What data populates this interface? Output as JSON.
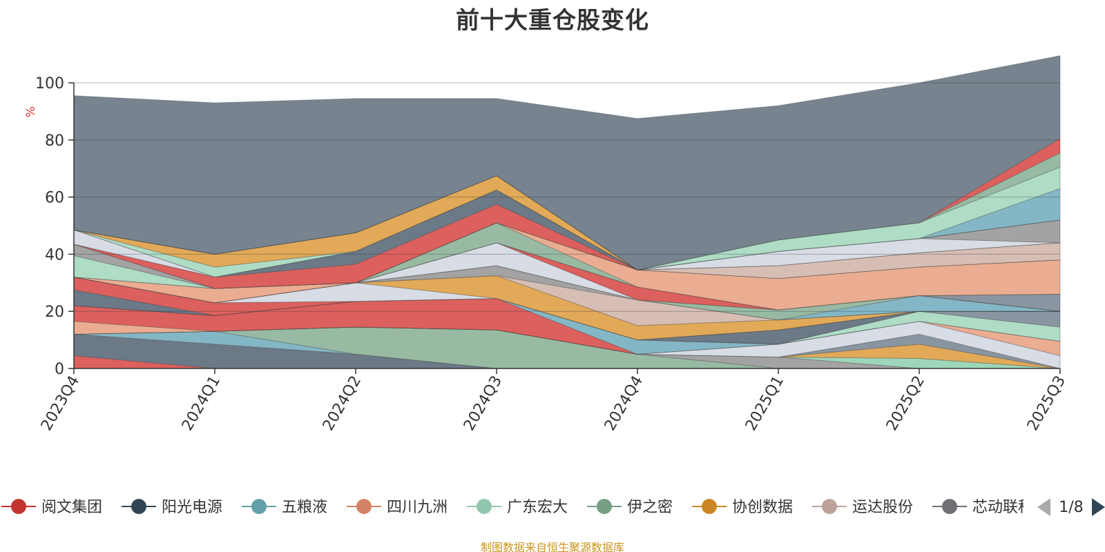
{
  "footer": "制图数据来自恒生聚源数据库",
  "legend_page": "1/8",
  "chart_data": {
    "type": "area",
    "stacked": true,
    "title": "前十大重仓股变化",
    "ylabel": "%",
    "ylim": [
      0,
      100
    ],
    "yticks": [
      0,
      20,
      40,
      60,
      80,
      100
    ],
    "categories": [
      "2023Q4",
      "2024Q1",
      "2024Q2",
      "2024Q3",
      "2024Q4",
      "2025Q1",
      "2025Q2",
      "2025Q3"
    ],
    "grid": true,
    "legend_position": "bottom",
    "series": [
      {
        "name": "",
        "color": "#d9534f",
        "values": [
          4.5,
          0,
          0,
          0,
          0,
          0,
          0,
          0
        ]
      },
      {
        "name": "",
        "color": "#5f6e7d",
        "values": [
          7.5,
          8.5,
          5,
          0,
          0,
          0,
          0,
          0
        ]
      },
      {
        "name": "",
        "color": "#7ab1c0",
        "values": [
          0,
          4.5,
          0,
          0,
          0,
          0,
          0,
          0
        ]
      },
      {
        "name": "",
        "color": "#8fb49b",
        "values": [
          0,
          0,
          9.5,
          13.5,
          5,
          0,
          0,
          0
        ]
      },
      {
        "name": "",
        "color": "#9b9b9b",
        "values": [
          0,
          0,
          0,
          0,
          0,
          4,
          0,
          0
        ]
      },
      {
        "name": "",
        "color": "#95d2b4",
        "values": [
          0,
          0,
          0,
          0,
          0,
          0,
          3.5,
          0
        ]
      },
      {
        "name": "",
        "color": "#dea24a",
        "values": [
          0,
          0,
          0,
          0,
          0,
          0,
          5,
          0
        ]
      },
      {
        "name": "",
        "color": "#7f8c98",
        "values": [
          0,
          0,
          0,
          0,
          0,
          0,
          3.5,
          0
        ]
      },
      {
        "name": "",
        "color": "#d5d9e2",
        "values": [
          0,
          0,
          0,
          0,
          0,
          4.5,
          4.5,
          4.5
        ]
      },
      {
        "name": "",
        "color": "#e8a688",
        "values": [
          4.5,
          0,
          0,
          0,
          0,
          0,
          0,
          5
        ]
      },
      {
        "name": "",
        "color": "#d9534f",
        "values": [
          5.5,
          5.5,
          9,
          11,
          0,
          0,
          0,
          0
        ]
      },
      {
        "name": "",
        "color": "#7ab1c0",
        "values": [
          0,
          0,
          0,
          0,
          5,
          0,
          0,
          0
        ]
      },
      {
        "name": "",
        "color": "#a7d9c0",
        "values": [
          0,
          0,
          0,
          0,
          0,
          0,
          3.5,
          5
        ]
      },
      {
        "name": "",
        "color": "#7f8c98",
        "values": [
          0,
          0,
          0,
          0,
          0,
          0,
          0,
          5.5
        ]
      },
      {
        "name": "",
        "color": "#5f6e7d",
        "values": [
          5.5,
          0,
          0,
          0,
          0,
          5,
          0,
          0
        ]
      },
      {
        "name": "",
        "color": "#d9534f",
        "values": [
          4.5,
          4.5,
          0,
          0,
          0,
          0,
          0,
          0
        ]
      },
      {
        "name": "",
        "color": "#d5d9e2",
        "values": [
          0,
          0,
          6.5,
          0,
          0,
          0,
          0,
          0
        ]
      },
      {
        "name": "",
        "color": "#dea24a",
        "values": [
          0,
          0,
          0,
          8,
          5,
          3.5,
          0,
          0
        ]
      },
      {
        "name": "",
        "color": "#d4b8ae",
        "values": [
          0,
          0,
          0,
          0,
          9,
          0,
          0,
          0
        ]
      },
      {
        "name": "",
        "color": "#9b9b9b",
        "values": [
          0,
          0,
          0,
          3.5,
          0,
          0,
          0,
          0
        ]
      },
      {
        "name": "",
        "color": "#7ab1c0",
        "values": [
          0,
          0,
          0,
          0,
          0,
          0,
          5.5,
          0
        ]
      },
      {
        "name": "",
        "color": "#8fb49b",
        "values": [
          0,
          0,
          0,
          0,
          0,
          3.5,
          0,
          0
        ]
      },
      {
        "name": "",
        "color": "#d5d9e2",
        "values": [
          0,
          0,
          0,
          8,
          0,
          0,
          0,
          0
        ]
      },
      {
        "name": "",
        "color": "#d9534f",
        "values": [
          0,
          0,
          0,
          0,
          4.5,
          0,
          0,
          0
        ]
      },
      {
        "name": "",
        "color": "#7f8c98",
        "values": [
          0,
          0,
          0,
          0,
          0,
          0,
          0,
          6
        ]
      },
      {
        "name": "",
        "color": "#e8a688",
        "values": [
          0,
          5,
          0,
          0,
          0,
          0,
          0,
          0
        ]
      },
      {
        "name": "",
        "color": "#8fb49b",
        "values": [
          0,
          0,
          0,
          7,
          0,
          0,
          0,
          0
        ]
      },
      {
        "name": "",
        "color": "#e8a688",
        "values": [
          0,
          0,
          0,
          0,
          6,
          11,
          10,
          12
        ]
      },
      {
        "name": "",
        "color": "#a7d9c0",
        "values": [
          7.5,
          0,
          0,
          0,
          0,
          0,
          0,
          0
        ]
      },
      {
        "name": "",
        "color": "#9b9b9b",
        "values": [
          4,
          0,
          0,
          0,
          0,
          0,
          0,
          0
        ]
      },
      {
        "name": "",
        "color": "#d4b8ae",
        "values": [
          0,
          0,
          0,
          0,
          0,
          4.5,
          5,
          6
        ]
      },
      {
        "name": "",
        "color": "#d9534f",
        "values": [
          0,
          4,
          6.5,
          6.5,
          0,
          0,
          0,
          0
        ]
      },
      {
        "name": "",
        "color": "#5f6e7d",
        "values": [
          0,
          0,
          4.5,
          5,
          0,
          0,
          0,
          0
        ]
      },
      {
        "name": "",
        "color": "#d5d9e2",
        "values": [
          5,
          0,
          0,
          0,
          0,
          5,
          5,
          0
        ]
      },
      {
        "name": "",
        "color": "#9b9b9b",
        "values": [
          0,
          0,
          0,
          0,
          0,
          0,
          0,
          8
        ]
      },
      {
        "name": "",
        "color": "#a7d9c0",
        "values": [
          0,
          3.5,
          0,
          0,
          0,
          0,
          0,
          0
        ]
      },
      {
        "name": "",
        "color": "#dea24a",
        "values": [
          0,
          4.5,
          6.5,
          5,
          0,
          0,
          0,
          0
        ]
      },
      {
        "name": "",
        "color": "#d4b8ae",
        "values": [
          0,
          0,
          0,
          0,
          0,
          0,
          0,
          0
        ]
      },
      {
        "name": "",
        "color": "#7ab1c0",
        "values": [
          0,
          0,
          0,
          0,
          0,
          0,
          0,
          11
        ]
      },
      {
        "name": "",
        "color": "#a7d9c0",
        "values": [
          0,
          0,
          0,
          0,
          0,
          4,
          5.5,
          7.5
        ]
      },
      {
        "name": "",
        "color": "#8fb49b",
        "values": [
          0,
          0,
          0,
          0,
          0,
          0,
          0,
          5
        ]
      },
      {
        "name": "",
        "color": "#d9534f",
        "values": [
          0,
          0,
          0,
          0,
          0,
          0,
          0,
          5
        ]
      },
      {
        "name": "",
        "color": "#6b7986",
        "values": [
          47,
          53,
          47,
          27,
          53,
          47,
          49,
          29
        ]
      }
    ],
    "legend": [
      {
        "name": "阅文集团",
        "color": "#c23531"
      },
      {
        "name": "阳光电源",
        "color": "#2f4554"
      },
      {
        "name": "五粮液",
        "color": "#61a0a8"
      },
      {
        "name": "四川九洲",
        "color": "#d48265"
      },
      {
        "name": "广东宏大",
        "color": "#91c7ae"
      },
      {
        "name": "伊之密",
        "color": "#749f83"
      },
      {
        "name": "协创数据",
        "color": "#ca8622"
      },
      {
        "name": "运达股份",
        "color": "#bda29a"
      },
      {
        "name": "芯动联科",
        "color": "#6e7074"
      }
    ]
  }
}
